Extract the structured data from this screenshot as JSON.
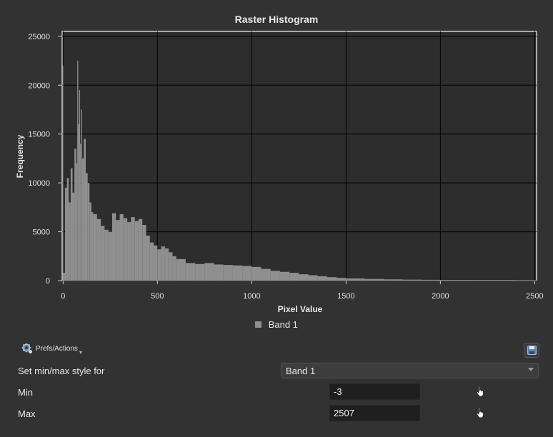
{
  "window": {
    "title": "Raster Histogram"
  },
  "chart_data": {
    "type": "bar",
    "title": "Raster Histogram",
    "xlabel": "Pixel Value",
    "ylabel": "Frequency",
    "xlim": [
      -5,
      2510
    ],
    "ylim": [
      0,
      25500
    ],
    "xticks": [
      0,
      500,
      1000,
      1500,
      2000,
      2500
    ],
    "yticks": [
      0,
      5000,
      10000,
      15000,
      20000,
      25000
    ],
    "grid": true,
    "legend_position": "bottom",
    "series": [
      {
        "name": "Band 1",
        "color": "#8f8f8f",
        "x": [
          -3,
          0,
          10,
          20,
          30,
          40,
          50,
          60,
          70,
          75,
          80,
          85,
          90,
          95,
          100,
          110,
          120,
          130,
          140,
          150,
          160,
          180,
          200,
          220,
          240,
          260,
          280,
          300,
          320,
          340,
          360,
          380,
          400,
          420,
          440,
          460,
          480,
          500,
          520,
          540,
          560,
          580,
          600,
          650,
          700,
          750,
          800,
          850,
          900,
          950,
          1000,
          1050,
          1100,
          1150,
          1200,
          1250,
          1300,
          1350,
          1400,
          1450,
          1500,
          1600,
          1700,
          1800,
          1900,
          2000,
          2100,
          2200,
          2300,
          2400,
          2500,
          2507
        ],
        "values": [
          22000,
          800,
          9500,
          10500,
          8000,
          11500,
          9000,
          13500,
          12000,
          22500,
          16000,
          19500,
          14000,
          17500,
          12500,
          14500,
          11000,
          10000,
          8000,
          7000,
          6800,
          6300,
          5600,
          5200,
          5000,
          6900,
          6200,
          6800,
          6400,
          6000,
          6500,
          6100,
          6300,
          5700,
          4600,
          3900,
          3600,
          3200,
          3500,
          3300,
          2900,
          2500,
          2200,
          1800,
          1700,
          1800,
          1650,
          1600,
          1550,
          1500,
          1400,
          1200,
          1000,
          900,
          800,
          650,
          550,
          450,
          350,
          280,
          220,
          170,
          130,
          100,
          80,
          70,
          60,
          50,
          40,
          30,
          25,
          0
        ]
      }
    ]
  },
  "legend": {
    "label": "Band 1"
  },
  "toolbar": {
    "prefs_label": "Prefs/Actions"
  },
  "form": {
    "style_label": "Set min/max style for",
    "style_value": "Band 1",
    "min_label": "Min",
    "min_value": "-3",
    "max_label": "Max",
    "max_value": "2507"
  }
}
